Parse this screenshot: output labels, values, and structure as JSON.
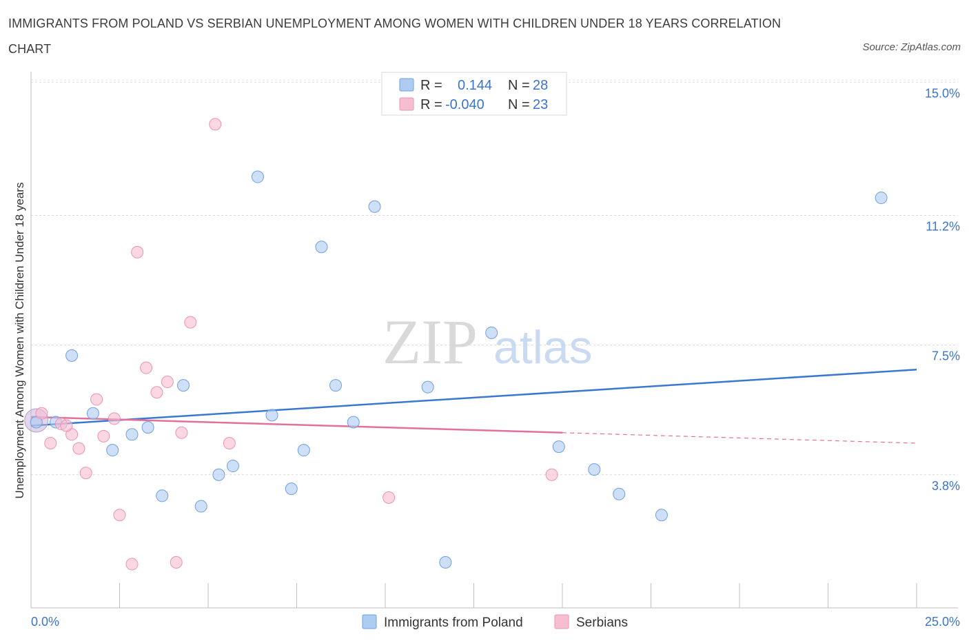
{
  "title": "IMMIGRANTS FROM POLAND VS SERBIAN UNEMPLOYMENT AMONG WOMEN WITH CHILDREN UNDER 18 YEARS CORRELATION CHART",
  "source": "Source: ZipAtlas.com",
  "watermark": {
    "zip": "ZIP",
    "atlas": "atlas"
  },
  "legend": {
    "rows": [
      {
        "r_label": "R = ",
        "r_value": "0.144",
        "n_label": "N = ",
        "n_value": "28",
        "color": "#aecbf2"
      },
      {
        "r_label": "R = ",
        "r_value": "-0.040",
        "n_label": "N = ",
        "n_value": "23",
        "color": "#f7bdd0"
      }
    ]
  },
  "chart_data": {
    "type": "scatter",
    "title": "IMMIGRANTS FROM POLAND VS SERBIAN UNEMPLOYMENT AMONG WOMEN WITH CHILDREN UNDER 18 YEARS CORRELATION CHART",
    "xlabel": "",
    "ylabel": "Unemployment Among Women with Children Under 18 years",
    "xlim": [
      0,
      25
    ],
    "ylim": [
      0,
      15.3
    ],
    "x_tick_labels": [
      "0.0%",
      "25.0%"
    ],
    "y_ticks": [
      3.8,
      7.5,
      11.2,
      15.0
    ],
    "y_tick_labels": [
      "3.8%",
      "7.5%",
      "11.2%",
      "15.0%"
    ],
    "grid": "horizontal dashed",
    "legend_position": "top-center",
    "series": [
      {
        "name": "Immigrants from Poland",
        "color": "#aecbf2",
        "stroke": "#6f9fe0",
        "trend_color": "#3a78cf",
        "trend": {
          "x": [
            0,
            25
          ],
          "y": [
            5.2,
            6.8
          ]
        },
        "points": [
          [
            0.15,
            5.3
          ],
          [
            0.7,
            5.3
          ],
          [
            1.15,
            7.2
          ],
          [
            1.75,
            5.55
          ],
          [
            2.3,
            4.5
          ],
          [
            2.85,
            4.95
          ],
          [
            3.3,
            5.15
          ],
          [
            3.7,
            3.2
          ],
          [
            4.3,
            6.35
          ],
          [
            4.8,
            2.9
          ],
          [
            5.3,
            3.8
          ],
          [
            5.7,
            4.05
          ],
          [
            6.4,
            12.3
          ],
          [
            6.8,
            5.5
          ],
          [
            7.35,
            3.4
          ],
          [
            7.7,
            4.5
          ],
          [
            8.2,
            10.3
          ],
          [
            8.6,
            6.35
          ],
          [
            9.1,
            5.3
          ],
          [
            9.7,
            11.45
          ],
          [
            11.2,
            6.3
          ],
          [
            11.7,
            1.3
          ],
          [
            13.0,
            7.85
          ],
          [
            14.9,
            4.6
          ],
          [
            15.9,
            3.95
          ],
          [
            16.6,
            3.25
          ],
          [
            17.8,
            2.65
          ],
          [
            24.0,
            11.7
          ]
        ]
      },
      {
        "name": "Serbians",
        "color": "#f7bdd0",
        "stroke": "#ec93b1",
        "trend_color": "#e2709a",
        "trend": {
          "x": [
            0,
            15
          ],
          "y": [
            5.45,
            5.0
          ]
        },
        "trend_extension": {
          "x": [
            15,
            25
          ],
          "y": [
            5.0,
            4.7
          ]
        },
        "points": [
          [
            0.3,
            5.55
          ],
          [
            0.85,
            5.25
          ],
          [
            1.15,
            4.95
          ],
          [
            1.35,
            4.55
          ],
          [
            1.55,
            3.85
          ],
          [
            1.85,
            5.95
          ],
          [
            2.05,
            4.9
          ],
          [
            2.35,
            5.4
          ],
          [
            2.5,
            2.65
          ],
          [
            2.85,
            1.25
          ],
          [
            3.0,
            10.15
          ],
          [
            3.25,
            6.85
          ],
          [
            3.55,
            6.15
          ],
          [
            3.85,
            6.45
          ],
          [
            4.1,
            1.3
          ],
          [
            4.25,
            5.0
          ],
          [
            4.5,
            8.15
          ],
          [
            5.2,
            13.8
          ],
          [
            5.6,
            4.7
          ],
          [
            10.1,
            3.15
          ],
          [
            14.7,
            3.8
          ],
          [
            0.55,
            4.7
          ],
          [
            1.0,
            5.2
          ]
        ]
      }
    ]
  },
  "bottom_legend": [
    {
      "label": "Immigrants from Poland",
      "color": "#aecbf2",
      "stroke": "#6f9fe0"
    },
    {
      "label": "Serbians",
      "color": "#f7bdd0",
      "stroke": "#ec93b1"
    }
  ]
}
